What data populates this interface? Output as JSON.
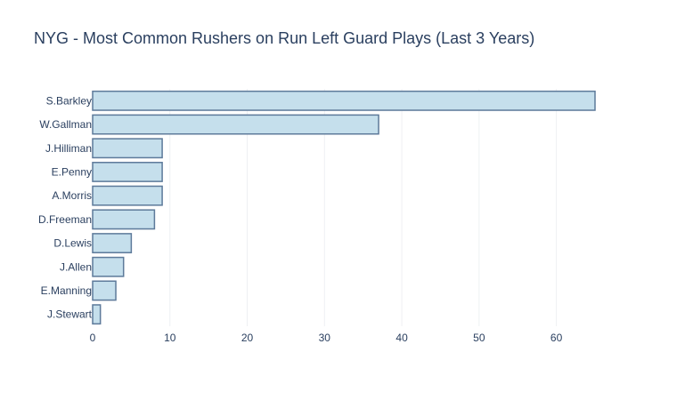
{
  "chart_data": {
    "type": "bar",
    "orientation": "horizontal",
    "title": "NYG - Most Common Rushers on Run Left Guard Plays (Last 3 Years)",
    "xlabel": "",
    "ylabel": "",
    "categories": [
      "S.Barkley",
      "W.Gallman",
      "J.Hilliman",
      "E.Penny",
      "A.Morris",
      "D.Freeman",
      "D.Lewis",
      "J.Allen",
      "E.Manning",
      "J.Stewart"
    ],
    "values": [
      65,
      37,
      9,
      9,
      9,
      8,
      5,
      4,
      3,
      1
    ],
    "xlim": [
      0,
      65
    ],
    "xticks": [
      0,
      10,
      20,
      30,
      40,
      50,
      60
    ],
    "grid": true,
    "legend": "none",
    "colors": {
      "bar_fill": "#c5dfec",
      "bar_stroke": "#5d7a9a",
      "grid": "#eef0f3",
      "text": "#2a3f5f"
    }
  }
}
